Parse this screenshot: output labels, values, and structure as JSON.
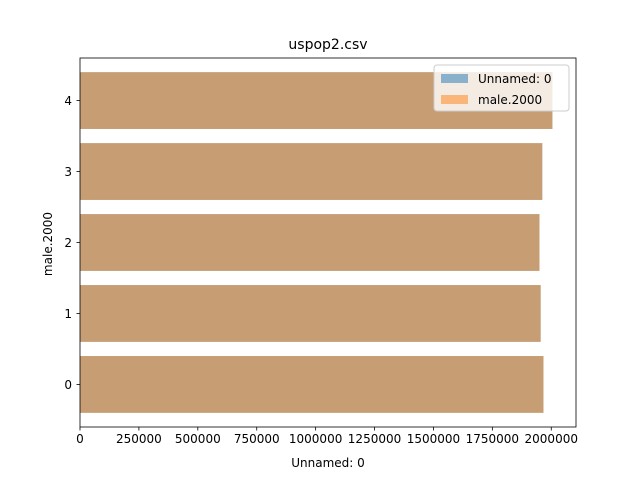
{
  "chart_data": {
    "type": "bar",
    "orientation": "horizontal",
    "title": "uspop2.csv",
    "xlabel": "Unnamed: 0",
    "ylabel": "male.2000",
    "categories": [
      "0",
      "1",
      "2",
      "3",
      "4"
    ],
    "series": [
      {
        "name": "Unnamed: 0",
        "color": "#1f77b4",
        "alpha": 0.5,
        "values": [
          1967000,
          1955000,
          1950000,
          1962000,
          2005000
        ]
      },
      {
        "name": "male.2000",
        "color": "#ff7f0e",
        "alpha": 0.5,
        "values": [
          1967000,
          1955000,
          1950000,
          1962000,
          2005000
        ]
      }
    ],
    "xlim": [
      0,
      2105000
    ],
    "xticks": [
      0,
      250000,
      500000,
      750000,
      1000000,
      1250000,
      1500000,
      1750000,
      2000000
    ],
    "xtick_labels": [
      "0",
      "250000",
      "500000",
      "750000",
      "1000000",
      "1250000",
      "1500000",
      "1750000",
      "2000000"
    ],
    "yticks": [
      0,
      1,
      2,
      3,
      4
    ],
    "ylim": [
      -0.6,
      4.6
    ],
    "bar_height": 0.8,
    "grid": false,
    "legend_position": "top-right"
  }
}
